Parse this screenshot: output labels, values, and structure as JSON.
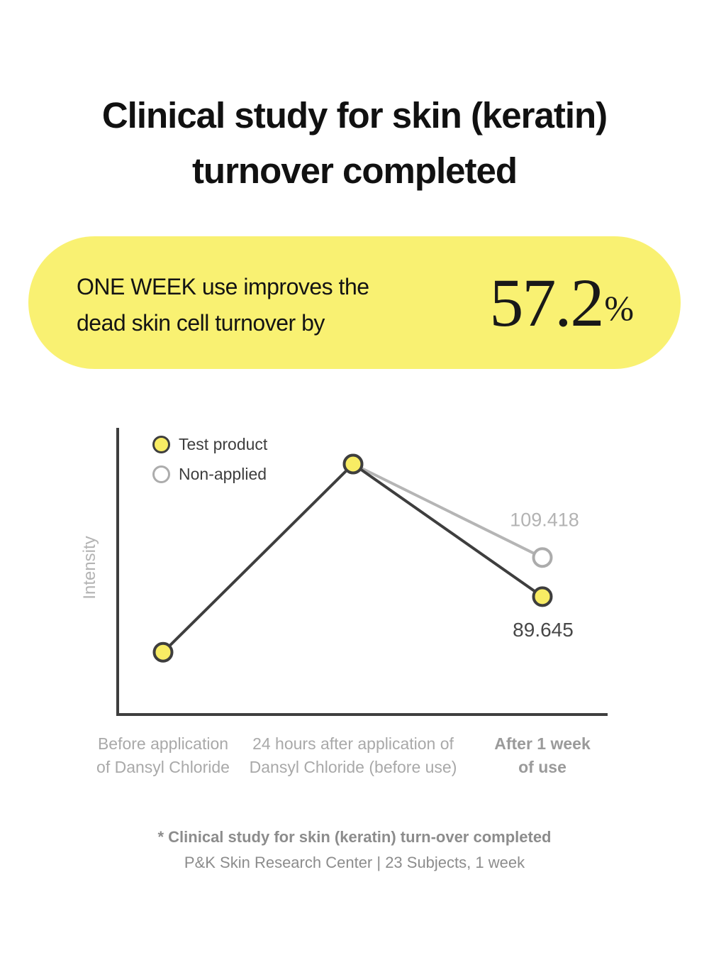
{
  "header": {
    "title": "Clinical study for skin (keratin)\nturnover completed"
  },
  "banner": {
    "text": "ONE WEEK use improves the\ndead skin cell turnover by",
    "stat_value": "57.2",
    "stat_unit": "%"
  },
  "chart_data": {
    "type": "line",
    "title": "",
    "xlabel": "",
    "ylabel": "Intensity",
    "grid": false,
    "legend_position": "top-left",
    "ylim": [
      30,
      175
    ],
    "categories": [
      "Before application\nof Dansyl Chloride",
      "24 hours after application of\nDansyl Chloride (before use)",
      "After 1 week\nof use"
    ],
    "series": [
      {
        "name": "Test product",
        "values": [
          61.5,
          156.7,
          89.645
        ],
        "value_label": "89.645",
        "labeled_point_index": 2,
        "line_color": "#3E3E3E",
        "marker_fill": "#F8EC64",
        "marker_stroke": "#3E3E3E"
      },
      {
        "name": "Non-applied",
        "values": [
          null,
          156.7,
          109.418
        ],
        "value_label": "109.418",
        "labeled_point_index": 2,
        "line_color": "#B5B5B5",
        "marker_fill": "#FFFFFF",
        "marker_stroke": "#ACACAC"
      }
    ]
  },
  "footer": {
    "line1": "* Clinical study for skin (keratin) turn-over completed",
    "line2": "P&K Skin Research Center | 23 Subjects, 1 week"
  },
  "colors": {
    "background": "#FFFFFF",
    "banner_yellow": "#F9F172",
    "title_text": "#111111",
    "dark_line": "#3E3E3E",
    "gray_line": "#B5B5B5",
    "marker_yellow": "#F8EC64",
    "gray_value_text": "#B3B3B3",
    "dark_value_text": "#474747",
    "axis_label_text": "#A9A9A9",
    "footnote_text": "#8C8C8C"
  }
}
